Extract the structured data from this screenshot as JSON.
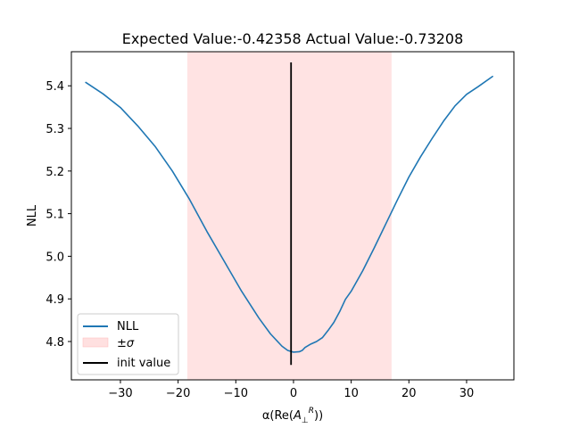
{
  "chart_data": {
    "type": "line",
    "title": "Expected Value:-0.42358 Actual Value:-0.73208",
    "xlabel": "α(Re(A⊥R))",
    "ylabel": "NLL",
    "xlim": [
      -38.5,
      38.2
    ],
    "ylim": [
      4.71,
      5.48
    ],
    "x_ticks": [
      -30,
      -20,
      -10,
      0,
      10,
      20,
      30
    ],
    "x_tick_labels": [
      "−30",
      "−20",
      "−10",
      "0",
      "10",
      "20",
      "30"
    ],
    "y_ticks": [
      4.8,
      4.9,
      5.0,
      5.1,
      5.2,
      5.3,
      5.4
    ],
    "y_tick_labels": [
      "4.8",
      "4.9",
      "5.0",
      "5.1",
      "5.2",
      "5.3",
      "5.4"
    ],
    "grid": false,
    "legend_position": "lower-left",
    "series": [
      {
        "name": "NLL",
        "color": "#1f77b4",
        "x": [
          -36,
          -33,
          -30,
          -27,
          -24,
          -21,
          -18,
          -15,
          -12,
          -9,
          -6,
          -4,
          -2,
          -1,
          0,
          1,
          1.5,
          2,
          3,
          4,
          5,
          6,
          7,
          8,
          9,
          10,
          12,
          14,
          16,
          18,
          20,
          22,
          24,
          26,
          28,
          30,
          32,
          34.5
        ],
        "y": [
          5.408,
          5.381,
          5.349,
          5.306,
          5.258,
          5.2,
          5.133,
          5.058,
          4.988,
          4.918,
          4.855,
          4.818,
          4.789,
          4.779,
          4.775,
          4.776,
          4.779,
          4.786,
          4.794,
          4.8,
          4.809,
          4.826,
          4.845,
          4.87,
          4.899,
          4.918,
          4.966,
          5.02,
          5.076,
          5.132,
          5.186,
          5.233,
          5.276,
          5.317,
          5.353,
          5.38,
          5.398,
          5.422
        ]
      }
    ],
    "sigma_band": {
      "name": "±σ",
      "x_min": -18.4,
      "x_max": 17.0,
      "color": "#ffcccc"
    },
    "init_value": {
      "name": "init value",
      "x": -0.42358,
      "y_min": 4.745,
      "y_max": 5.455,
      "color": "#000000"
    }
  }
}
